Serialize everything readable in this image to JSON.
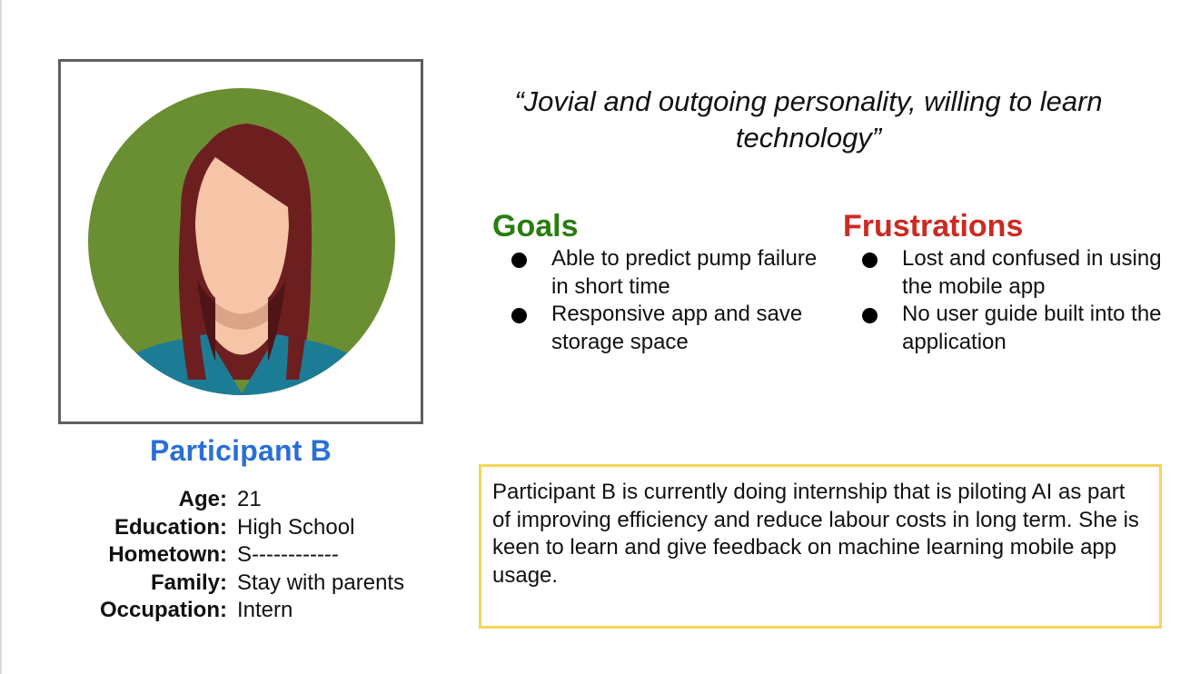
{
  "persona": {
    "name": "Participant B",
    "avatar_icon": "female-avatar-icon",
    "details": [
      {
        "label": "Age:",
        "value": "21"
      },
      {
        "label": "Education:",
        "value": "High School"
      },
      {
        "label": "Hometown:",
        "value": "S------------"
      },
      {
        "label": "Family:",
        "value": "Stay with parents"
      },
      {
        "label": "Occupation:",
        "value": "Intern"
      }
    ]
  },
  "quote": "“Jovial and outgoing personality, willing to learn technology”",
  "goals": {
    "title": "Goals",
    "items": [
      "Able to predict pump failure in short time",
      "Responsive app and save storage space"
    ]
  },
  "frustrations": {
    "title": "Frustrations",
    "items": [
      "Lost and confused in using the mobile app",
      "No user guide built into the application"
    ]
  },
  "summary": "Participant B is currently doing internship that is piloting AI as part of improving efficiency and reduce labour costs in long term. She is keen to learn and give feedback on machine learning mobile app usage.",
  "colors": {
    "name": "#2a6fd6",
    "goals": "#2a7d0f",
    "frustrations": "#cc2a22",
    "avatar_bg": "#6a8e32",
    "hair": "#6d1f20",
    "skin": "#f6c4a6",
    "shirt": "#1c7c96",
    "summary_border": "#f5d55a"
  }
}
